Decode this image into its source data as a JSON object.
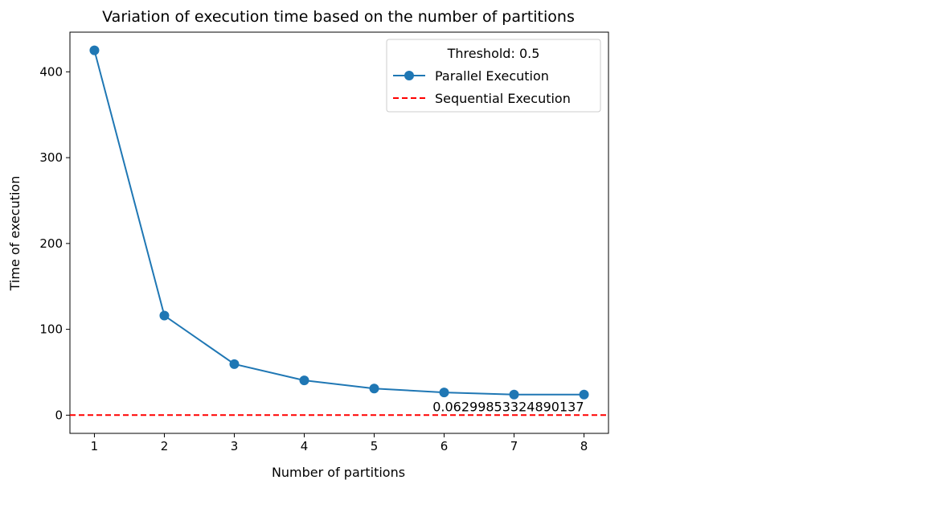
{
  "chart_data": {
    "type": "line",
    "title": "Variation of execution time based on the number of partitions",
    "xlabel": "Number of partitions",
    "ylabel": "Time of execution",
    "xlim": [
      0.65,
      8.35
    ],
    "ylim": [
      -21.2,
      446.2
    ],
    "x_ticks": [
      1,
      2,
      3,
      4,
      5,
      6,
      7,
      8
    ],
    "y_ticks": [
      0,
      100,
      200,
      300,
      400
    ],
    "grid": false,
    "legend": {
      "title": "Threshold: 0.5",
      "placement": "upper right",
      "entries": [
        "Parallel Execution",
        "Sequential Execution"
      ]
    },
    "series": [
      {
        "name": "Parallel Execution",
        "style": "solid-line-with-circles",
        "color": "#1f77b4",
        "x": [
          1,
          2,
          3,
          4,
          5,
          6,
          7,
          8
        ],
        "y": [
          425,
          116,
          59.5,
          40.5,
          31,
          26.5,
          24,
          24
        ]
      },
      {
        "name": "Sequential Execution",
        "style": "dashed-horizontal-line",
        "color": "#ff0000",
        "y": 0.06299853324890137
      }
    ],
    "annotations": [
      {
        "text": "0.06299853324890137",
        "x": 8,
        "y": 0.06299853324890137,
        "anchor": "end"
      }
    ]
  }
}
